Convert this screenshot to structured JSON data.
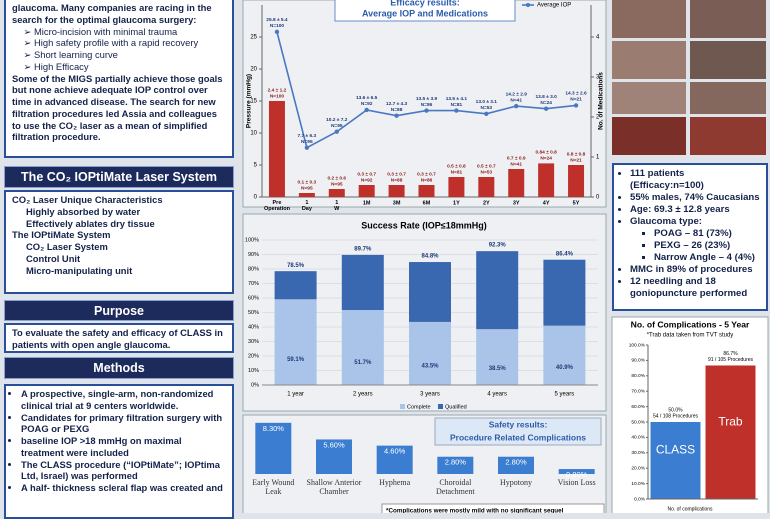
{
  "intro": {
    "lead": "glaucoma. Many companies are racing in the search for the optimal glaucoma surgery:",
    "goals": [
      "Micro-incision with minimal trauma",
      "High safety profile with a rapid recovery",
      "Short learning curve",
      "High Efficacy"
    ],
    "paragraph": "Some of the MIGS partially achieve those goals but none achieve adequate IOP control over time in advanced disease. The search for new filtration procedures led Assia and colleagues to use the CO₂ laser as a mean of simplified filtration procedure."
  },
  "laser_system": {
    "title": "The CO₂ IOPtiMate Laser System",
    "items": [
      {
        "label": "CO₂ Laser Unique Characteristics",
        "subitems": [
          "Highly absorbed by water",
          "Effectively ablates dry tissue"
        ]
      },
      {
        "label": "The IOPtiMate System",
        "subitems": [
          "CO₂ Laser System",
          "Control Unit",
          "Micro-manipulating unit"
        ]
      }
    ]
  },
  "purpose": {
    "title": "Purpose",
    "text": "To evaluate the safety and efficacy of CLASS in patients with open angle glaucoma."
  },
  "methods": {
    "title": "Methods",
    "bullets": [
      "A prospective, single-arm, non-randomized clinical trial at 9 centers worldwide.",
      "Candidates for primary filtration surgery with POAG or PEXG",
      "baseline IOP >18 mmHg on maximal treatment were included",
      "The CLASS procedure (“IOPtiMate”; IOPtima Ltd, Israel) was performed",
      "A half- thickness scleral flap was created and"
    ]
  },
  "patients": {
    "bullets_before": [
      "111 patients (Efficacy:n=100)",
      "55% males, 74% Caucasians",
      "Age: 69.3 ± 12.8 years"
    ],
    "glaucoma_label": "Glaucoma type:",
    "glaucoma_types": [
      "POAG – 81 (73%)",
      "PEXG – 26 (23%)",
      "Narrow Angle – 4 (4%)"
    ],
    "bullets_after": [
      "MMC in 89% of procedures",
      "12 needling and 18 goniopuncture performed"
    ]
  },
  "chart_data": [
    {
      "type": "combo",
      "title": "Efficacy results:",
      "subtitle": "Average IOP and Medications",
      "ylabel": "Pressure (mmHg)",
      "y2label": "No. of Medications",
      "categories": [
        "Pre Operation",
        "1 Day",
        "1 W",
        "1M",
        "3M",
        "6M",
        "1Y",
        "2Y",
        "3Y",
        "4Y",
        "5Y"
      ],
      "ylim": [
        0,
        30
      ],
      "yticks": [
        0,
        5,
        10,
        15,
        20,
        25
      ],
      "y2lim": [
        0,
        4.8
      ],
      "y2ticks": [
        0,
        1,
        2,
        3,
        4
      ],
      "series": [
        {
          "name": "Average IOP",
          "kind": "line",
          "color": "#4a78c0",
          "values": [
            25.8,
            7.7,
            10.2,
            13.6,
            12.7,
            13.5,
            13.5,
            13.0,
            14.2,
            13.8,
            14.3
          ],
          "value_labels": [
            "25.8 ± 5.4",
            "7.7 ± 6.3",
            "10.2 ± 7.2",
            "13.6 ± 6.5",
            "12.7 ± 4.3",
            "13.5 ± 3.9",
            "13.5 ± 4.1",
            "13.0 ± 3.1",
            "14.2 ± 2.9",
            "13.8 ± 3.0",
            "14.3 ± 2.6"
          ],
          "n_labels": [
            "N=100",
            "N=95",
            "N=95",
            "N=92",
            "N=88",
            "N=86",
            "N=81",
            "N=53",
            "N=41",
            "N=24",
            "N=21"
          ]
        },
        {
          "kind": "bar",
          "axis": "y2",
          "color": "#c0302b",
          "values": [
            2.4,
            0.1,
            0.2,
            0.3,
            0.3,
            0.3,
            0.5,
            0.5,
            0.7,
            0.84,
            0.8
          ],
          "value_labels": [
            "2.4 ± 1.2",
            "0.1 ± 0.3",
            "0.2 ± 0.6",
            "0.3 ± 0.7",
            "0.3 ± 0.7",
            "0.3 ± 0.7",
            "0.5 ± 0.8",
            "0.5 ± 0.7",
            "0.7 ± 0.9",
            "0.84 ± 0.8",
            "0.8 ± 0.8"
          ],
          "n_labels": [
            "N=100",
            "N=95",
            "N=95",
            "N=92",
            "N=88",
            "N=86",
            "N=81",
            "N=53",
            "N=41",
            "N=24",
            "N=21"
          ]
        }
      ]
    },
    {
      "type": "stacked_bar",
      "title": "Success Rate (IOP≤18mmHg)",
      "categories": [
        "1 year",
        "2 years",
        "3 years",
        "4 years",
        "5 years"
      ],
      "ylim": [
        0,
        100
      ],
      "yticks": [
        {
          "value": 0,
          "label": "0%"
        },
        {
          "value": 10,
          "label": "10%"
        },
        {
          "value": 20,
          "label": "20%"
        },
        {
          "value": 30,
          "label": "30%"
        },
        {
          "value": 40,
          "label": "40%"
        },
        {
          "value": 50,
          "label": "50%"
        },
        {
          "value": 60,
          "label": "60%"
        },
        {
          "value": 70,
          "label": "70%"
        },
        {
          "value": 80,
          "label": "80%"
        },
        {
          "value": 90,
          "label": "90%"
        },
        {
          "value": 100,
          "label": "100%"
        }
      ],
      "series": [
        {
          "name": "Complete",
          "color": "#a9c4e8",
          "values": [
            59.1,
            51.7,
            43.5,
            38.5,
            40.9
          ],
          "value_labels": [
            "59.1%",
            "51.7%",
            "43.5%",
            "38.5%",
            "40.9%"
          ]
        },
        {
          "name": "Qualified",
          "color": "#3a68b0",
          "values": [
            19.4,
            38.0,
            41.3,
            53.8,
            45.5
          ]
        }
      ],
      "totals": [
        78.5,
        89.7,
        84.8,
        92.3,
        86.4
      ],
      "total_labels": [
        "78.5%",
        "89.7%",
        "84.8%",
        "92.3%",
        "86.4%"
      ]
    },
    {
      "type": "bar",
      "title": "Safety results:",
      "subtitle": "Procedure Related Complications",
      "categories": [
        "Early Wound Leak",
        "Shallow Anterior Chamber",
        "Hyphema",
        "Choroidal Detachment",
        "Hypotony",
        "Vision Loss"
      ],
      "values": [
        8.3,
        5.6,
        4.6,
        2.8,
        2.8,
        0.8
      ],
      "value_labels": [
        "8.30%",
        "5.60%",
        "4.60%",
        "2.80%",
        "2.80%",
        "0.80%"
      ],
      "ylim": [
        0,
        9
      ],
      "color": "#3b7dd0",
      "footnote": "*Complications were mostly mild with no significant sequel"
    },
    {
      "type": "bar",
      "title": "No. of Complications - 5 Year",
      "subtitle": "*Trab data taken from TVT study",
      "xlabel": "No. of complications",
      "categories": [
        "CLASS",
        "Trab"
      ],
      "colors": [
        "#3b7dd0",
        "#c0302b"
      ],
      "values": [
        50.0,
        86.7
      ],
      "value_labels": [
        "50.0%",
        "86.7%"
      ],
      "notes": [
        "54 / 108 Procedures",
        "91 / 105 Procedures"
      ],
      "ylim": [
        0,
        100
      ],
      "yticks": [
        {
          "value": 0,
          "label": "0.0%"
        },
        {
          "value": 10,
          "label": "10.0%"
        },
        {
          "value": 20,
          "label": "20.0%"
        },
        {
          "value": 30,
          "label": "30.0%"
        },
        {
          "value": 40,
          "label": "40.0%"
        },
        {
          "value": 50,
          "label": "50.0%"
        },
        {
          "value": 60,
          "label": "60.0%"
        },
        {
          "value": 70,
          "label": "70.0%"
        },
        {
          "value": 80,
          "label": "80.0%"
        },
        {
          "value": 90,
          "label": "90.0%"
        },
        {
          "value": 100,
          "label": "100.0%"
        }
      ]
    }
  ]
}
